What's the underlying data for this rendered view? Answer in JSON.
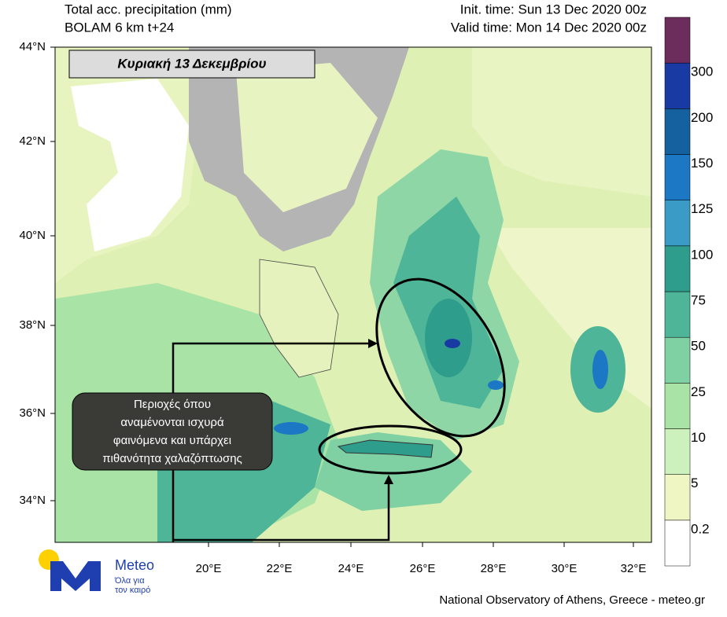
{
  "header": {
    "title": "Total acc. precipitation (mm)",
    "model": "BOLAM 6 km t+24",
    "init_time": "Init. time: Sun 13 Dec 2020 00z",
    "valid_time": "Valid time: Mon 14 Dec 2020 00z"
  },
  "banner": "Κυριακή 13 Δεκεμβρίου",
  "annotation": [
    "Περιοχές όπου",
    "αναμένονται ισχυρά",
    "φαινόμενα και υπάρχει",
    "πιθανότητα χαλαζόπτωσης"
  ],
  "latitude_labels": [
    "44°N",
    "42°N",
    "40°N",
    "38°N",
    "36°N",
    "34°N"
  ],
  "longitude_labels": [
    "20°E",
    "22°E",
    "24°E",
    "26°E",
    "28°E",
    "30°E",
    "32°E"
  ],
  "legend": {
    "labels": [
      "0.2",
      "5",
      "10",
      "25",
      "50",
      "75",
      "100",
      "125",
      "150",
      "200",
      "300"
    ],
    "colors": [
      "#ffffff",
      "#f0f5c4",
      "#cdf1bd",
      "#a9e3a6",
      "#7fd0a3",
      "#4fb598",
      "#2f9d8b",
      "#3a9cc6",
      "#1c77c4",
      "#15609f",
      "#1a3aa3",
      "#6c2d5c"
    ]
  },
  "logo": {
    "name": "Meteo",
    "tagline": [
      "Όλα για",
      "τον καιρό"
    ]
  },
  "footer": "National Observatory of Athens, Greece - meteo.gr"
}
